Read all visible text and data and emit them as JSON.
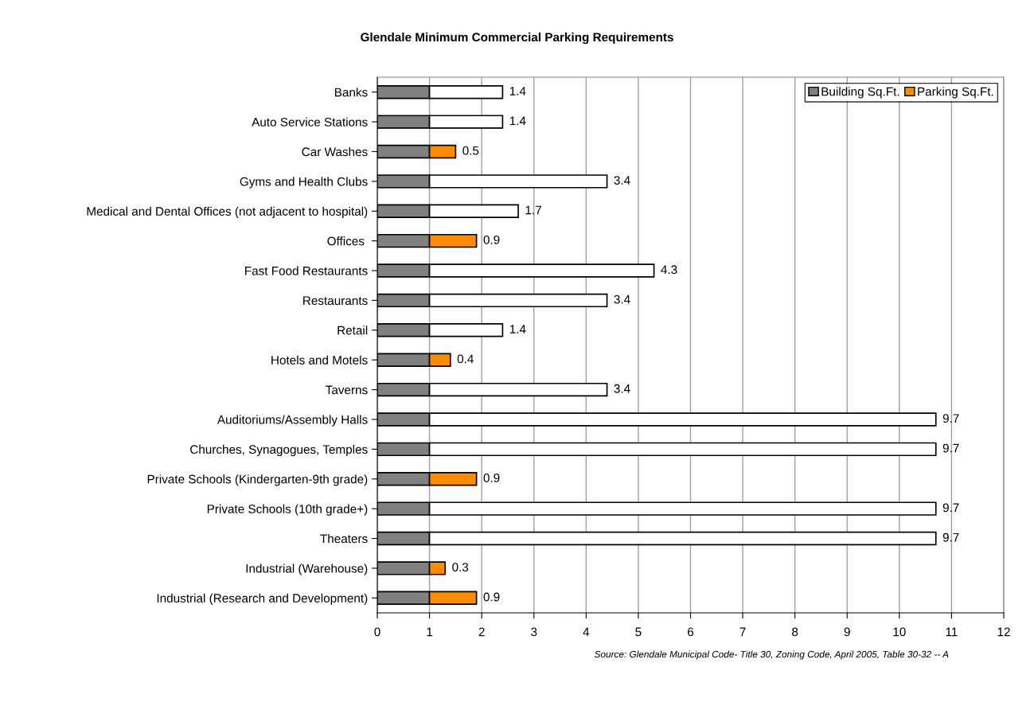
{
  "chart_data": {
    "type": "bar",
    "orientation": "horizontal",
    "stacked": true,
    "title": "Glendale Minimum Commercial Parking Requirements",
    "categories": [
      "Banks",
      "Auto Service Stations",
      "Car Washes",
      "Gyms and Health Clubs",
      "Medical and Dental Offices (not adjacent to hospital)",
      "Offices ",
      "Fast Food Restaurants",
      "Restaurants",
      "Retail",
      "Hotels and Motels",
      "Taverns",
      "Auditoriums/Assembly Halls",
      "Churches, Synagogues, Temples",
      "Private Schools (Kindergarten-9th grade)",
      "Private Schools (10th grade+)",
      "Theaters",
      "Industrial (Warehouse)",
      "Industrial (Research and Development)"
    ],
    "series": [
      {
        "name": "Building Sq.Ft.",
        "color": "#808080",
        "values": [
          1,
          1,
          1,
          1,
          1,
          1,
          1,
          1,
          1,
          1,
          1,
          1,
          1,
          1,
          1,
          1,
          1,
          1
        ],
        "value_labels": [
          null,
          null,
          null,
          null,
          null,
          null,
          null,
          null,
          null,
          null,
          null,
          null,
          null,
          null,
          null,
          null,
          null,
          null
        ]
      },
      {
        "name": "Parking Sq.Ft.",
        "color": "#ff8c00",
        "colors": [
          "#ffffff",
          "#ffffff",
          "#ff8c00",
          "#ffffff",
          "#ffffff",
          "#ff8c00",
          "#ffffff",
          "#ffffff",
          "#ffffff",
          "#ff8c00",
          "#ffffff",
          "#ffffff",
          "#ffffff",
          "#ff8c00",
          "#ffffff",
          "#ffffff",
          "#ff8c00",
          "#ff8c00"
        ],
        "values": [
          1.4,
          1.4,
          0.5,
          3.4,
          1.7,
          0.9,
          4.3,
          3.4,
          1.4,
          0.4,
          3.4,
          9.7,
          9.7,
          0.9,
          9.7,
          9.7,
          0.3,
          0.9
        ],
        "value_labels": [
          "1.4",
          "1.4",
          "0.5",
          "3.4",
          "1.7",
          "0.9",
          "4.3",
          "3.4",
          "1.4",
          "0.4",
          "3.4",
          "9.7",
          "9.7",
          "0.9",
          "9.7",
          "9.7",
          "0.3",
          "0.9"
        ]
      }
    ],
    "xlim": [
      0,
      12
    ],
    "xticks": [
      0,
      1,
      2,
      3,
      4,
      5,
      6,
      7,
      8,
      9,
      10,
      11,
      12
    ],
    "grid": "x",
    "legend": "top right",
    "annotations": [
      "Source: Glendale Municipal Code- Title 30, Zoning Code, April 2005, Table 30-32 -- A"
    ]
  }
}
